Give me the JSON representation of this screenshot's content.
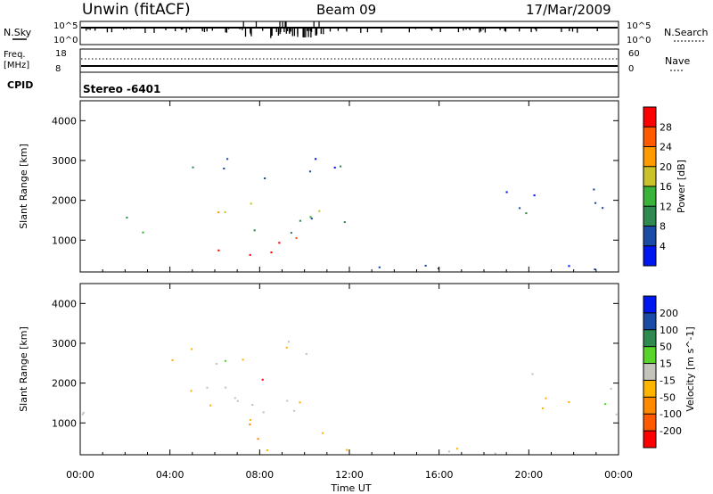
{
  "header": {
    "station": "Unwin (fitACF)",
    "beam": "Beam 09",
    "date": "17/Mar/2009"
  },
  "top_panels": {
    "nsky_label": "N.Sky",
    "nsky_ticks": [
      "10^5",
      "10^0"
    ],
    "nsearch_label": "N.Search",
    "nsearch_ticks": [
      "10^5",
      "10^0"
    ],
    "freq_label_top": "Freq.",
    "freq_label_unit": "[MHz]",
    "freq_ticks": [
      "18",
      "8"
    ],
    "nave_label": "Nave",
    "nave_ticks": [
      "60",
      "0"
    ],
    "cpid_label": "CPID",
    "cpid_value": "Stereo -6401"
  },
  "chart_data": [
    {
      "type": "heatmap",
      "name": "power",
      "ylabel": "Slant Range [km]",
      "ylim": [
        200,
        4500
      ],
      "yticks": [
        "1000",
        "2000",
        "3000",
        "4000"
      ],
      "xlim": [
        0,
        24
      ],
      "colorbar_label": "Power [dB]",
      "colorbar_ticks": [
        "4",
        "8",
        "12",
        "16",
        "20",
        "24",
        "28"
      ],
      "colors": [
        "#0018f0",
        "#1b4ca6",
        "#2e8a4f",
        "#39b339",
        "#c9c22a",
        "#ff9b00",
        "#ff5a00",
        "#ff0000"
      ],
      "regions": [
        {
          "x": [
            0,
            11.8
          ],
          "y": [
            1100,
            1650
          ],
          "level": 2
        },
        {
          "x": [
            4.0,
            11.6
          ],
          "y": [
            1500,
            2100
          ],
          "level": 4
        },
        {
          "x": [
            3.0,
            11.8
          ],
          "y": [
            2500,
            3300
          ],
          "level": 1
        },
        {
          "x": [
            6.1,
            11.8
          ],
          "y": [
            550,
            1300
          ],
          "level": 7
        },
        {
          "x": [
            0,
            24
          ],
          "y": [
            250,
            450
          ],
          "level": 1
        },
        {
          "x": [
            18.5,
            24
          ],
          "y": [
            1200,
            2300
          ],
          "level": 1
        }
      ]
    },
    {
      "type": "heatmap",
      "name": "velocity",
      "ylabel": "Slant Range [km]",
      "xlabel": "Time UT",
      "ylim": [
        200,
        4500
      ],
      "yticks": [
        "1000",
        "2000",
        "3000",
        "4000"
      ],
      "xlim": [
        0,
        24
      ],
      "xticks": [
        "00:00",
        "04:00",
        "08:00",
        "12:00",
        "16:00",
        "20:00",
        "00:00"
      ],
      "colorbar_label": "Velocity [m s^-1]",
      "colorbar_ticks": [
        "200",
        "100",
        "50",
        "15",
        "-15",
        "-50",
        "-100",
        "-200"
      ],
      "colors": [
        "#0018f0",
        "#1b4ca6",
        "#2e8a4f",
        "#59d42a",
        "#c4c4bc",
        "#ffb500",
        "#ff8a00",
        "#ff5a00",
        "#ff0000"
      ],
      "regions": [
        {
          "x": [
            0,
            11.8
          ],
          "y": [
            1100,
            1650
          ],
          "level": 4
        },
        {
          "x": [
            4.0,
            11.6
          ],
          "y": [
            1500,
            2100
          ],
          "level": 4
        },
        {
          "x": [
            3.0,
            11.8
          ],
          "y": [
            2500,
            3300
          ],
          "level": 4
        },
        {
          "x": [
            6.1,
            11.8
          ],
          "y": [
            550,
            1300
          ],
          "level": 5
        },
        {
          "x": [
            7.0,
            8.5
          ],
          "y": [
            1950,
            2250
          ],
          "level": 8
        },
        {
          "x": [
            0,
            24
          ],
          "y": [
            250,
            450
          ],
          "level": 5
        },
        {
          "x": [
            18.5,
            24
          ],
          "y": [
            1200,
            2300
          ],
          "level": 4
        }
      ]
    }
  ]
}
